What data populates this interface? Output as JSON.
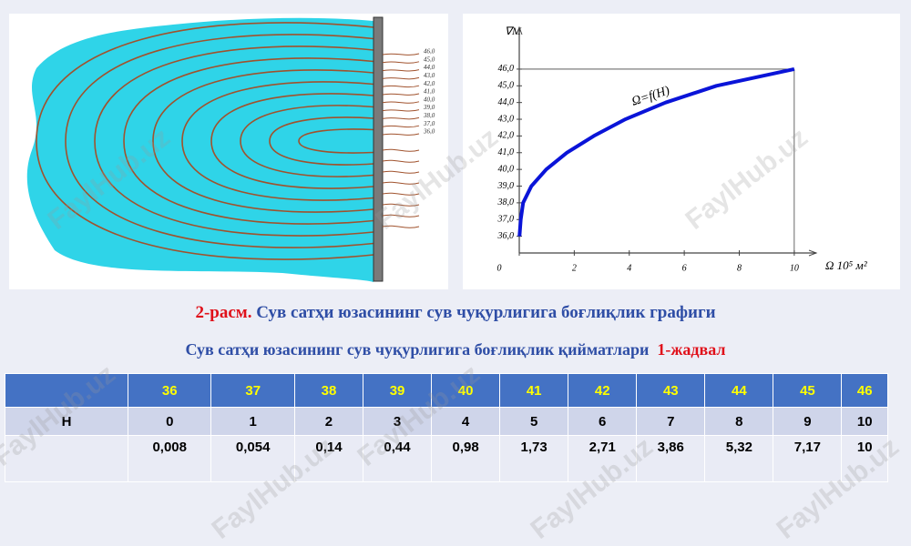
{
  "chart_data": {
    "type": "line",
    "y_label": "∇М",
    "x_label": "Ω  10⁵ м²",
    "annotation": "Ω=f(H)",
    "x": [
      0.008,
      0.054,
      0.14,
      0.44,
      0.98,
      1.73,
      2.71,
      3.86,
      5.32,
      7.17,
      10
    ],
    "series": [
      {
        "name": "Ω=f(H)",
        "color": "#0a14d8",
        "values": [
          36,
          37,
          38,
          39,
          40,
          41,
          42,
          43,
          44,
          45,
          46
        ]
      }
    ],
    "xlim": [
      0,
      10.8
    ],
    "xticks": [
      0,
      2,
      4,
      6,
      8,
      10
    ],
    "ylim": [
      35,
      48.5
    ],
    "yticks": [
      {
        "value": 36,
        "label": "36,0"
      },
      {
        "value": 37,
        "label": "37,0"
      },
      {
        "value": 38,
        "label": "38,0"
      },
      {
        "value": 39,
        "label": "39,0"
      },
      {
        "value": 40,
        "label": "40,0"
      },
      {
        "value": 41,
        "label": "41,0"
      },
      {
        "value": 42,
        "label": "42,0"
      },
      {
        "value": 43,
        "label": "43,0"
      },
      {
        "value": 44,
        "label": "44,0"
      },
      {
        "value": 45,
        "label": "45,0"
      },
      {
        "value": 46,
        "label": "46,0"
      }
    ]
  },
  "contour_labels": [
    "46,0",
    "45,0",
    "44,0",
    "43,0",
    "42,0",
    "41,0",
    "40,0",
    "39,0",
    "38,0",
    "37,0",
    "36,0"
  ],
  "caption": {
    "number": "2-расм.",
    "text": "Сув сатҳи юзасининг сув чуқурлигига боғлиқлик графиги"
  },
  "table_title": {
    "text": "Сув сатҳи юзасининг сув чуқурлигига боғлиқлик  қийматлари",
    "label": "1-жадвал"
  },
  "table": {
    "rows": [
      [
        "",
        "36",
        "37",
        "38",
        "39",
        "40",
        "41",
        "42",
        "43",
        "44",
        "45",
        "46"
      ],
      [
        "H",
        "0",
        "1",
        "2",
        "3",
        "4",
        "5",
        "6",
        "7",
        "8",
        "9",
        "10"
      ],
      [
        "",
        "0,008",
        "0,054",
        "0,14",
        "0,44",
        "0,98",
        "1,73",
        "2,71",
        "3,86",
        "5,32",
        "7,17",
        "10"
      ]
    ]
  },
  "watermark": "FaylHub.uz"
}
